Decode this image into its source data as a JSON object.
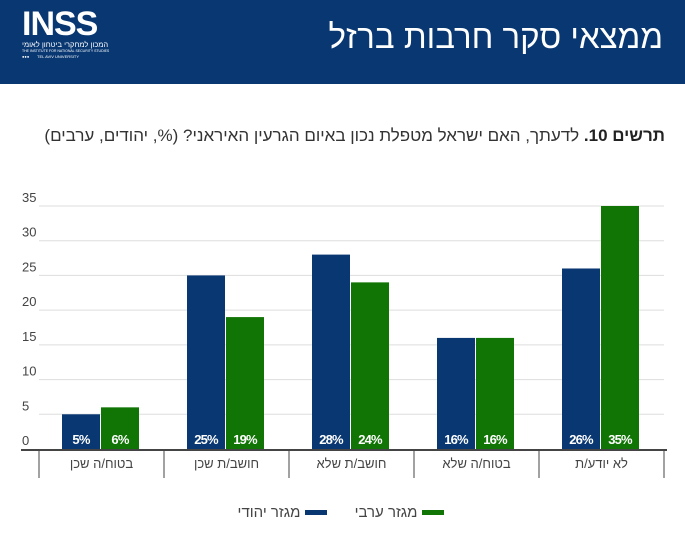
{
  "header": {
    "title": "ממצאי סקר חרבות ברזל",
    "logo": {
      "name": "INSS",
      "hebrew": "המכון למחקרי ביטחון לאומי",
      "english": "THE INSTITUTE FOR NATIONAL SECURITY STUDIES",
      "affiliation": "TEL AVIV UNIVERSITY"
    }
  },
  "question": {
    "label": "תרשים 10.",
    "text": " לדעתך, האם ישראל מטפלת נכון באיום הגרעין האיראני? (%, יהודים, ערבים)"
  },
  "colors": {
    "header": "#083772",
    "jewish": "#083772",
    "arab": "#117506"
  },
  "chart_data": {
    "type": "bar",
    "categories": [
      "בטוח/ה שכן",
      "חושב/ת שכן",
      "חושב/ת שלא",
      "בטוח/ה שלא",
      "לא יודע/ת"
    ],
    "series": [
      {
        "name": "מגזר יהודי",
        "values": [
          5,
          25,
          28,
          16,
          26
        ],
        "labels": [
          "5%",
          "25%",
          "28%",
          "16%",
          "26%"
        ]
      },
      {
        "name": "מגזר ערבי",
        "values": [
          6,
          19,
          24,
          16,
          35
        ],
        "labels": [
          "6%",
          "19%",
          "24%",
          "16%",
          "35%"
        ]
      }
    ],
    "yticks": [
      "0",
      "5",
      "10",
      "15",
      "20",
      "25",
      "30",
      "35"
    ],
    "ylim": [
      0,
      35
    ],
    "grid": true,
    "legend": "bottom"
  }
}
